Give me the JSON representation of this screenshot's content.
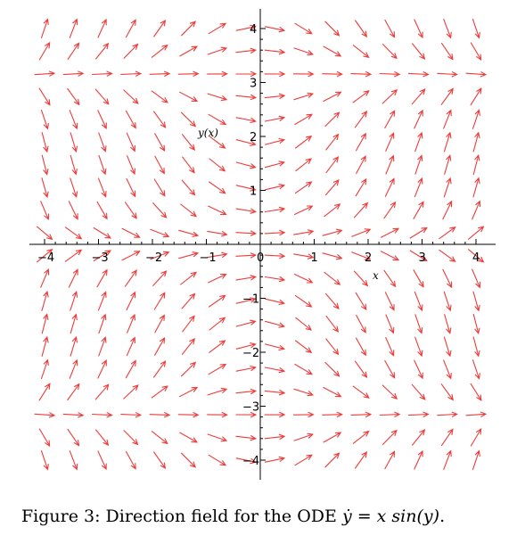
{
  "chart_data": {
    "type": "direction_field",
    "ode": "dy/dx = x sin(y)",
    "xlabel": "x",
    "ylabel": "y(x)",
    "xlim": [
      -4.2,
      4.2
    ],
    "ylim": [
      -4.3,
      4.3
    ],
    "x_ticks": [
      -4,
      -3,
      -2,
      -1,
      0,
      1,
      2,
      3,
      4
    ],
    "y_ticks": [
      -4,
      -3,
      -2,
      -1,
      1,
      2,
      3,
      4
    ],
    "grid": false,
    "arrow_color": "#ee3b3b",
    "field_samples": {
      "x_count": 16,
      "y_count": 20,
      "x_range": [
        -4,
        4
      ],
      "y_range": [
        -4,
        4
      ]
    }
  },
  "caption": {
    "prefix": "Figure 3: Direction field for the ODE ",
    "equation": "ẏ = x sin(y)",
    "suffix": "."
  }
}
